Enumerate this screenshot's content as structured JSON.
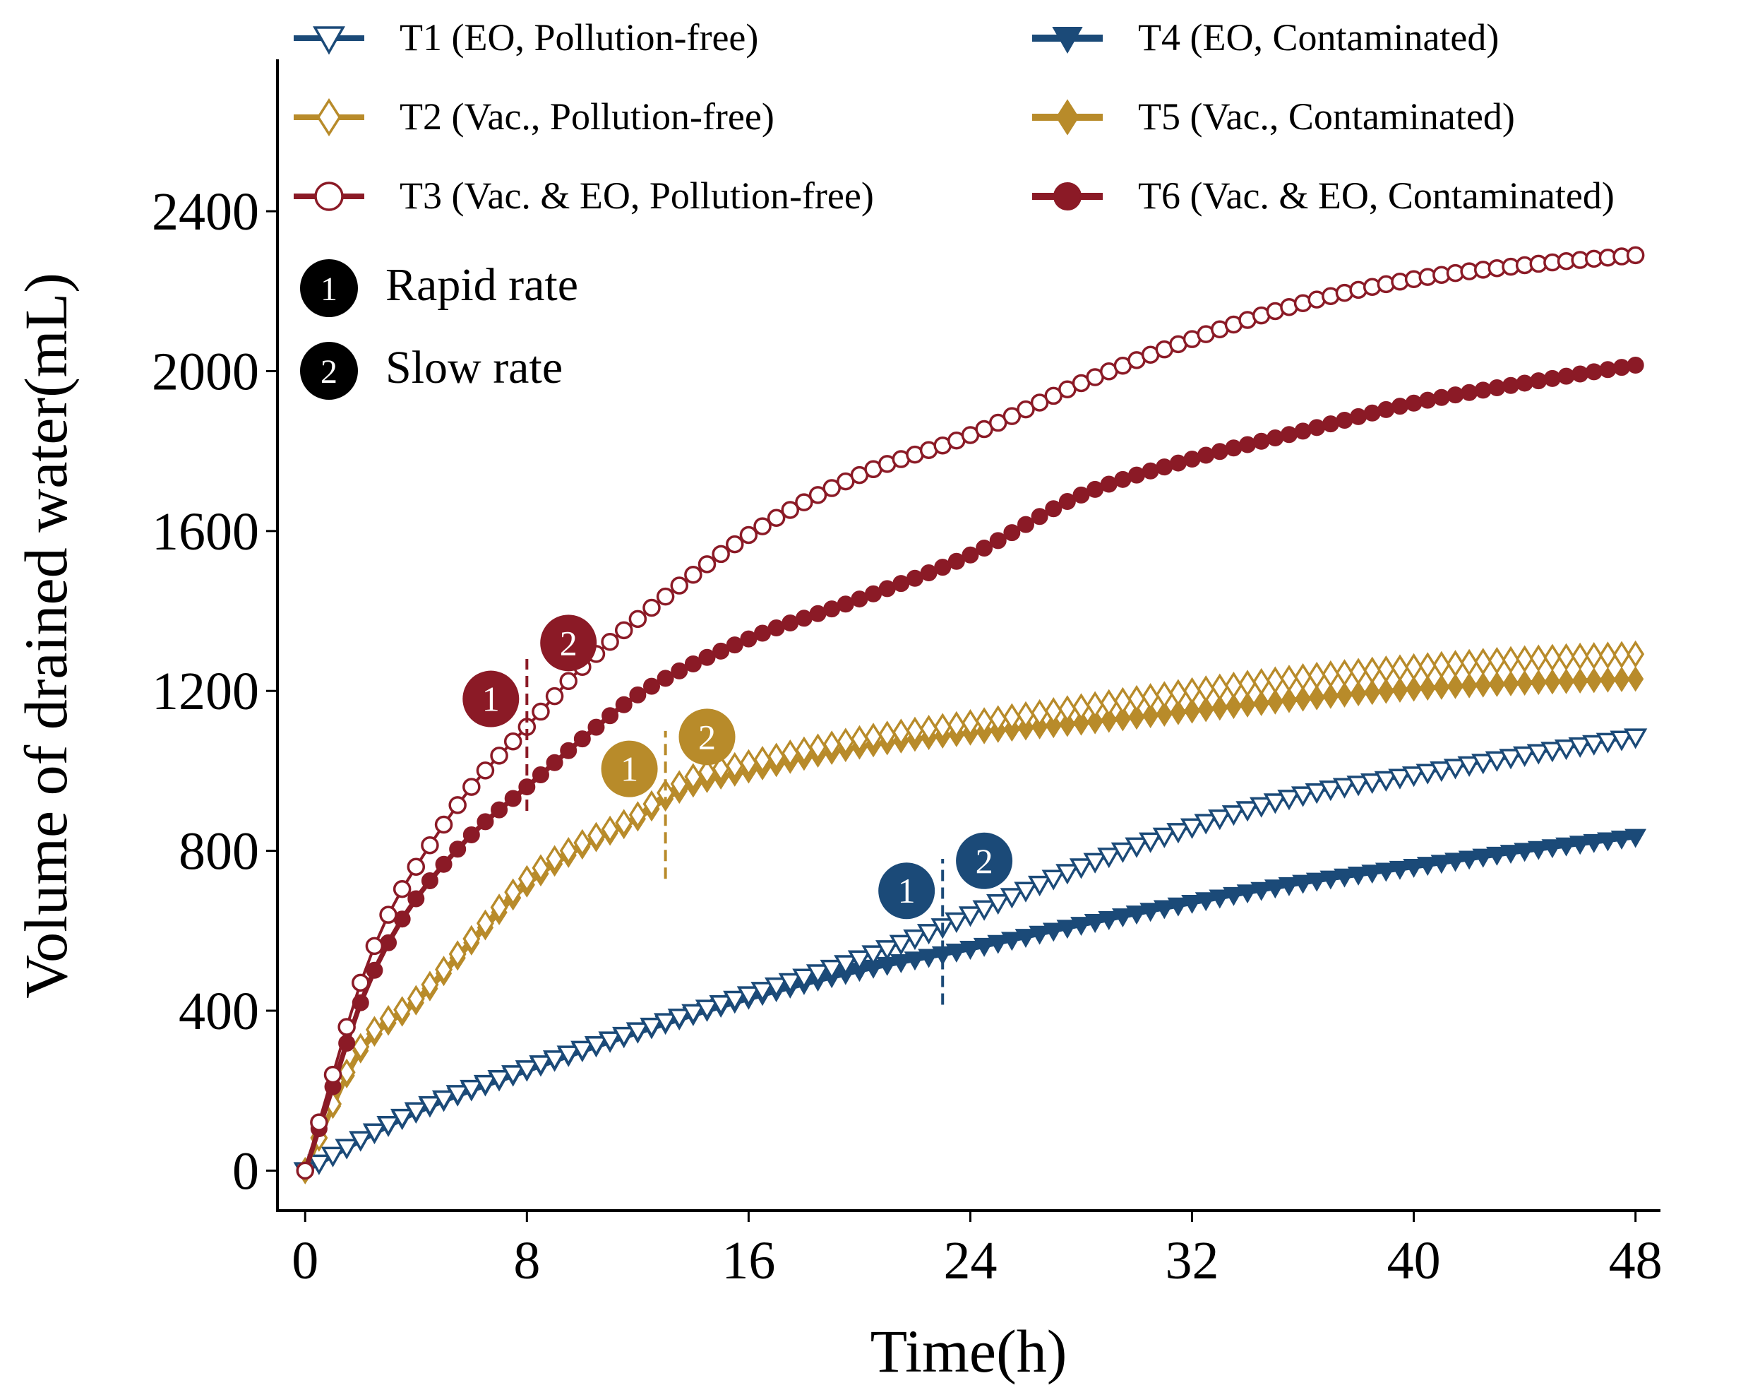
{
  "chart_data": {
    "type": "line",
    "title": "",
    "xlabel": "Time(h)",
    "ylabel": "Volume of drained water(mL)",
    "xlim": [
      -1,
      48.9
    ],
    "ylim": [
      -100,
      2780
    ],
    "xticks": [
      0,
      8,
      16,
      24,
      32,
      40,
      48
    ],
    "yticks": [
      0,
      400,
      800,
      1200,
      1600,
      2000,
      2400
    ],
    "xtick_labels": [
      "0",
      "8",
      "16",
      "24",
      "32",
      "40",
      "48"
    ],
    "ytick_labels": [
      "0",
      "400",
      "800",
      "1200",
      "1600",
      "2000",
      "2400"
    ],
    "grid": false,
    "legend_position": "top",
    "point_interval_h": 0.5,
    "series": [
      {
        "name": "T1 (EO, Pollution-free)",
        "color": "#1b4a78",
        "marker": "triangle-down",
        "filled": false,
        "anchors_x": [
          0,
          4,
          8,
          12,
          16,
          20,
          23,
          24,
          28,
          32,
          36,
          40,
          44,
          48
        ],
        "anchors_y": [
          0,
          150,
          255,
          350,
          440,
          530,
          610,
          640,
          760,
          860,
          940,
          990,
          1040,
          1085
        ]
      },
      {
        "name": "T2 (Vac., Pollution-free)",
        "color": "#b88b2a",
        "marker": "diamond",
        "filled": false,
        "anchors_x": [
          0,
          2,
          4,
          6,
          8,
          10,
          12,
          13,
          14,
          16,
          20,
          24,
          28,
          32,
          36,
          40,
          44,
          48
        ],
        "anchors_y": [
          0,
          310,
          430,
          580,
          730,
          820,
          890,
          945,
          985,
          1020,
          1080,
          1120,
          1160,
          1200,
          1235,
          1260,
          1280,
          1292
        ]
      },
      {
        "name": "T3 (Vac. & EO, Pollution-free)",
        "color": "#8b1a26",
        "marker": "circle",
        "filled": false,
        "anchors_x": [
          0,
          1,
          2,
          3,
          4,
          6,
          8,
          10,
          12,
          16,
          20,
          24,
          28,
          32,
          36,
          40,
          44,
          48
        ],
        "anchors_y": [
          0,
          240,
          470,
          640,
          760,
          960,
          1110,
          1260,
          1380,
          1590,
          1740,
          1840,
          1970,
          2080,
          2170,
          2230,
          2265,
          2290
        ]
      },
      {
        "name": "T4 (EO, Contaminated)",
        "color": "#1b4a78",
        "marker": "triangle-down",
        "filled": true,
        "anchors_x": [
          0,
          4,
          8,
          12,
          16,
          20,
          24,
          28,
          32,
          36,
          40,
          44,
          48
        ],
        "anchors_y": [
          0,
          145,
          250,
          345,
          430,
          500,
          555,
          615,
          670,
          720,
          760,
          800,
          835
        ]
      },
      {
        "name": "T5 (Vac., Contaminated)",
        "color": "#b88b2a",
        "marker": "diamond",
        "filled": true,
        "anchors_x": [
          0,
          2,
          4,
          6,
          8,
          10,
          12,
          13,
          14,
          16,
          20,
          24,
          28,
          32,
          36,
          40,
          44,
          48
        ],
        "anchors_y": [
          0,
          300,
          420,
          570,
          715,
          810,
          880,
          930,
          965,
          1000,
          1060,
          1095,
          1120,
          1150,
          1180,
          1205,
          1220,
          1230
        ]
      },
      {
        "name": "T6 (Vac. & EO, Contaminated)",
        "color": "#8b1a26",
        "marker": "circle",
        "filled": true,
        "anchors_x": [
          0,
          1,
          2,
          3,
          4,
          6,
          8,
          10,
          12,
          16,
          20,
          24,
          28,
          32,
          36,
          40,
          44,
          48
        ],
        "anchors_y": [
          0,
          210,
          420,
          570,
          680,
          840,
          960,
          1080,
          1190,
          1330,
          1430,
          1540,
          1690,
          1780,
          1850,
          1920,
          1970,
          2015
        ]
      }
    ],
    "transition_markers": [
      {
        "color": "#8b1a26",
        "x": 8,
        "y_range": [
          900,
          1280
        ],
        "label_1": {
          "text": "1",
          "x": 6.7,
          "y": 1180
        },
        "label_2": {
          "text": "2",
          "x": 9.5,
          "y": 1320
        }
      },
      {
        "color": "#b88b2a",
        "x": 13,
        "y_range": [
          730,
          1100
        ],
        "label_1": {
          "text": "1",
          "x": 11.7,
          "y": 1005
        },
        "label_2": {
          "text": "2",
          "x": 14.5,
          "y": 1085
        }
      },
      {
        "color": "#1b4a78",
        "x": 23,
        "y_range": [
          415,
          780
        ],
        "label_1": {
          "text": "1",
          "x": 21.7,
          "y": 700
        },
        "label_2": {
          "text": "2",
          "x": 24.5,
          "y": 775
        }
      }
    ],
    "annotations": [
      {
        "badge": "1",
        "text": "Rapid rate"
      },
      {
        "badge": "2",
        "text": "Slow rate"
      }
    ]
  }
}
